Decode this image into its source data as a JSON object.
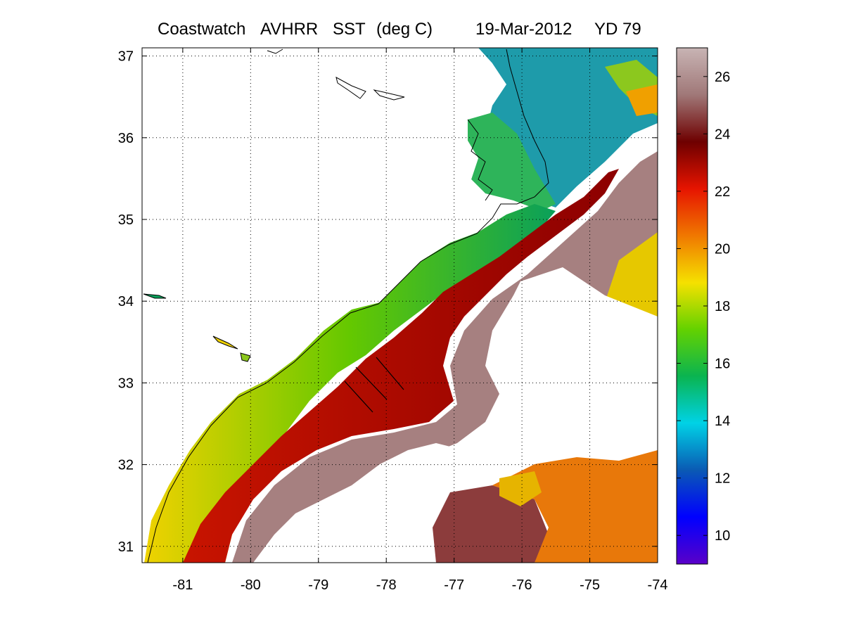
{
  "title": {
    "product": "Coastwatch",
    "sensor": "AVHRR",
    "parameter": "SST",
    "units": "(deg C)",
    "date": "19-Mar-2012",
    "yearday": "YD 79"
  },
  "map": {
    "x_ticks": [
      "-81",
      "-80",
      "-79",
      "-78",
      "-77",
      "-76",
      "-75",
      "-74"
    ],
    "y_ticks": [
      "31",
      "32",
      "33",
      "34",
      "35",
      "36",
      "37"
    ],
    "lon_range": [
      -81.6,
      -74
    ],
    "lat_range": [
      30.8,
      37.1
    ],
    "grid": "dotted"
  },
  "colorbar": {
    "ticks": [
      "10",
      "12",
      "14",
      "16",
      "18",
      "20",
      "22",
      "24",
      "26"
    ],
    "range": [
      9,
      27
    ],
    "colors": [
      "#5a00c8",
      "#0000ff",
      "#0a5ab4",
      "#00d2e6",
      "#0ab450",
      "#64d200",
      "#f5e100",
      "#f07800",
      "#e61400",
      "#6e0000",
      "#a07878",
      "#c8b4b4"
    ]
  }
}
